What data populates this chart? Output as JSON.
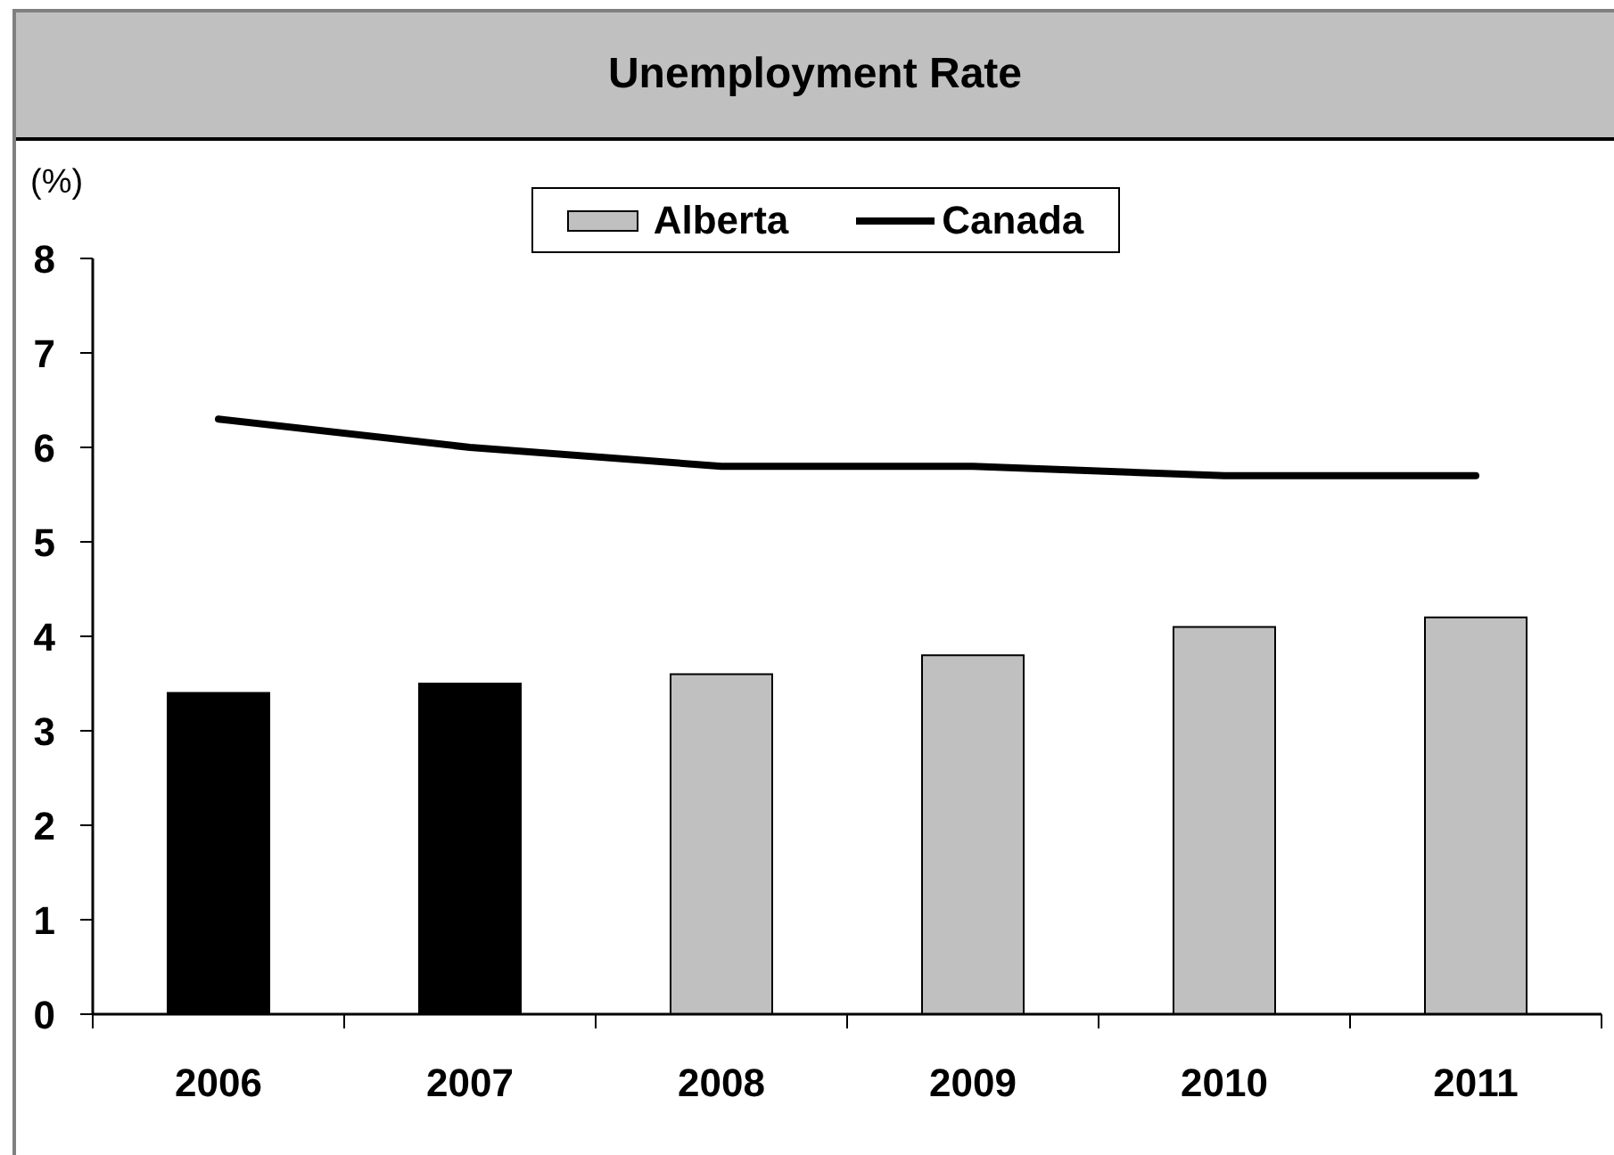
{
  "chart_data": {
    "type": "bar",
    "title": "Unemployment Rate",
    "ylabel": "(%)",
    "categories": [
      "2006",
      "2007",
      "2008",
      "2009",
      "2010",
      "2011"
    ],
    "series": [
      {
        "name": "Alberta",
        "color": "#c0c0c0",
        "colors": [
          "#000000",
          "#000000",
          "#c0c0c0",
          "#c0c0c0",
          "#c0c0c0",
          "#c0c0c0"
        ],
        "values": [
          3.4,
          3.5,
          3.6,
          3.8,
          4.1,
          4.2
        ]
      },
      {
        "name": "Canada",
        "type": "line",
        "color": "#000000",
        "values": [
          6.3,
          6.0,
          5.8,
          5.8,
          5.7,
          5.7
        ]
      }
    ],
    "ylim": [
      0,
      8
    ],
    "yticks": [
      0,
      1,
      2,
      3,
      4,
      5,
      6,
      7,
      8
    ],
    "legend": "top",
    "marker": "none"
  }
}
